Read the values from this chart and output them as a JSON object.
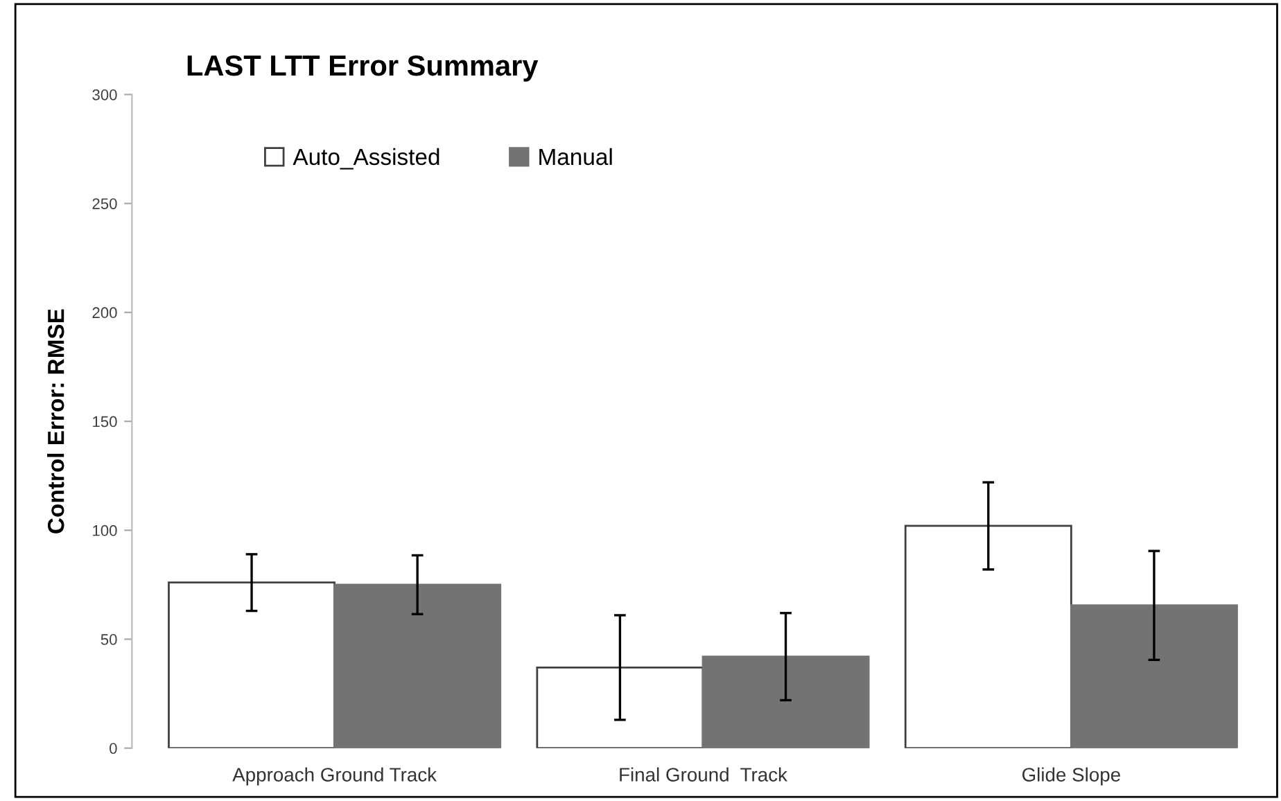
{
  "chart_data": {
    "type": "bar",
    "title": "LAST LTT Error Summary",
    "ylabel": "Control Error: RMSE",
    "categories": [
      "Approach Ground Track",
      "Final Ground  Track",
      "Glide Slope"
    ],
    "series": [
      {
        "name": "Auto_Assisted",
        "color": "#ffffff",
        "values": [
          76,
          37,
          102
        ],
        "errors": [
          13,
          24,
          20
        ]
      },
      {
        "name": "Manual",
        "color": "#737373",
        "values": [
          75,
          42,
          65.5
        ],
        "errors": [
          13.5,
          20,
          25
        ]
      }
    ],
    "ylim": [
      0,
      300
    ],
    "yticks": [
      0,
      50,
      100,
      150,
      200,
      250,
      300
    ],
    "grid": false,
    "legend": "top left"
  }
}
